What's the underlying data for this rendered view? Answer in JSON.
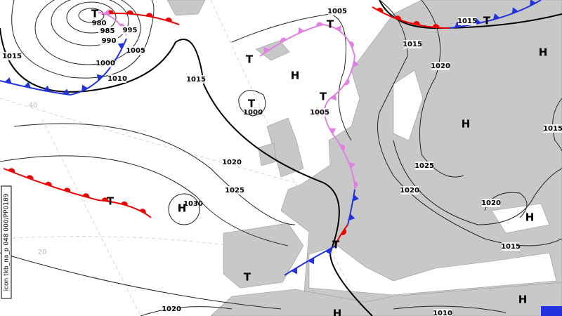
{
  "side_label": "icon tkb_na_p 048 000/PP0189",
  "lows": [
    "T",
    "T",
    "T",
    "T",
    "T",
    "T",
    "T",
    "T",
    "T"
  ],
  "highs": [
    "H",
    "H",
    "H",
    "H",
    "H",
    "H",
    "H"
  ],
  "center_pressures": [
    980,
    1000,
    1030
  ],
  "isobar_labels": [
    985,
    995,
    990,
    1005,
    1000,
    1010,
    1015,
    1015,
    1005,
    1005,
    1020,
    1025,
    1020,
    1015,
    1020,
    1015,
    1015,
    1025,
    1020,
    1020,
    1015,
    1010
  ],
  "graticule_labels": [
    40,
    20
  ]
}
